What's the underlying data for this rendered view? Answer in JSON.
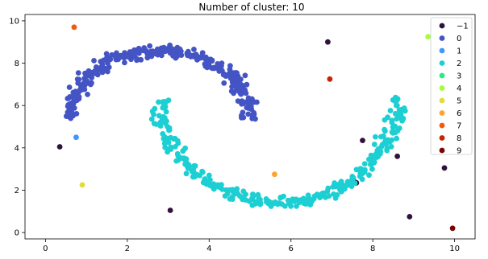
{
  "chart_data": {
    "type": "scatter",
    "title": "Number of cluster: 10",
    "xlabel": "",
    "ylabel": "",
    "xlim": [
      -0.5,
      10.5
    ],
    "ylim": [
      -0.3,
      10.3
    ],
    "xticks": [
      0,
      2,
      4,
      6,
      8,
      10
    ],
    "xtick_labels": [
      "0",
      "2",
      "4",
      "6",
      "8",
      "10"
    ],
    "yticks": [
      0,
      2,
      4,
      6,
      8,
      10
    ],
    "ytick_labels": [
      "0",
      "2",
      "4",
      "6",
      "8",
      "10"
    ],
    "grid": false,
    "legend_position": "top-right",
    "series": [
      {
        "name": "−1",
        "color": "#30123b",
        "x": [
          0.35,
          6.9,
          7.75,
          7.6,
          8.6,
          9.75,
          8.9,
          3.05,
          7.45,
          7.55
        ],
        "y": [
          4.05,
          9.0,
          4.35,
          2.35,
          3.6,
          3.05,
          0.75,
          1.05,
          2.35,
          2.4
        ]
      },
      {
        "name": "0",
        "color": "#4454c4",
        "points": "moon_upper"
      },
      {
        "name": "1",
        "color": "#4196ff",
        "x": [
          0.75
        ],
        "y": [
          4.5
        ]
      },
      {
        "name": "2",
        "color": "#1ccfd3",
        "points": "moon_lower"
      },
      {
        "name": "3",
        "color": "#26eb82",
        "x": [],
        "y": []
      },
      {
        "name": "4",
        "color": "#a4fc3c",
        "x": [
          9.35
        ],
        "y": [
          9.25
        ]
      },
      {
        "name": "5",
        "color": "#e1dd37",
        "x": [
          0.9
        ],
        "y": [
          2.25
        ]
      },
      {
        "name": "6",
        "color": "#fea330",
        "x": [
          5.6
        ],
        "y": [
          2.75
        ]
      },
      {
        "name": "7",
        "color": "#f05b12",
        "x": [
          0.7
        ],
        "y": [
          9.7
        ]
      },
      {
        "name": "8",
        "color": "#c42503",
        "x": [
          6.95
        ],
        "y": [
          7.25
        ]
      },
      {
        "name": "9",
        "color": "#7a0403",
        "x": [
          9.95
        ],
        "y": [
          0.2
        ]
      }
    ]
  }
}
